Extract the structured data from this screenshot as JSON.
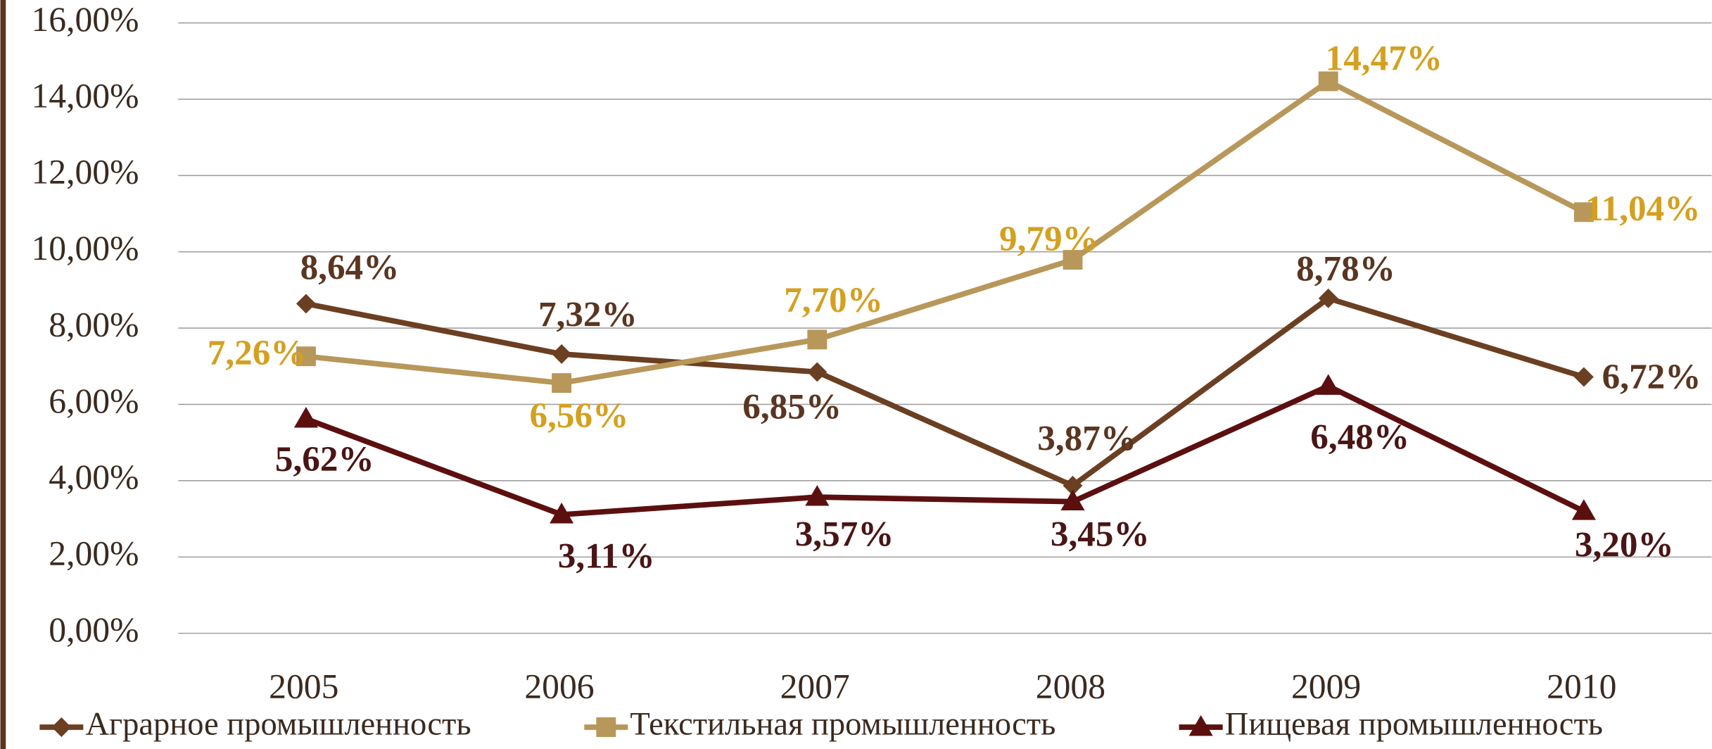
{
  "chart_data": {
    "type": "line",
    "categories": [
      "2005",
      "2006",
      "2007",
      "2008",
      "2009",
      "2010"
    ],
    "series": [
      {
        "name": "Аграрное промышленность",
        "color": "#6b3f22",
        "label_color": "#5a3520",
        "marker": "diamond",
        "values": [
          8.64,
          7.32,
          6.85,
          3.87,
          8.78,
          6.72
        ],
        "value_labels": [
          "8,64%",
          "7,32%",
          "6,85%",
          "3,87%",
          "8,78%",
          "6,72%"
        ]
      },
      {
        "name": "Текстильная промышленность",
        "color": "#b8975a",
        "label_color": "#d4a020",
        "marker": "square",
        "values": [
          7.26,
          6.56,
          7.7,
          9.79,
          14.47,
          11.04
        ],
        "value_labels": [
          "7,26%",
          "6,56%",
          "7,70%",
          "9,79%",
          "14,47%",
          "11,04%"
        ]
      },
      {
        "name": "Пищевая промышленность",
        "color": "#5c0f0f",
        "label_color": "#4a1515",
        "marker": "triangle",
        "values": [
          5.62,
          3.11,
          3.57,
          3.45,
          6.48,
          3.2
        ],
        "value_labels": [
          "5,62%",
          "3,11%",
          "3,57%",
          "3,45%",
          "6,48%",
          "3,20%"
        ]
      }
    ],
    "ylim": [
      0,
      16
    ],
    "yticks": [
      {
        "value": 0,
        "label": "0,00%"
      },
      {
        "value": 2,
        "label": "2,00%"
      },
      {
        "value": 4,
        "label": "4,00%"
      },
      {
        "value": 6,
        "label": "6,00%"
      },
      {
        "value": 8,
        "label": "8,00%"
      },
      {
        "value": 10,
        "label": "10,00%"
      },
      {
        "value": 12,
        "label": "12,00%"
      },
      {
        "value": 14,
        "label": "14,00%"
      },
      {
        "value": 16,
        "label": "16,00%"
      }
    ],
    "grid": true,
    "legend": "bottom"
  }
}
